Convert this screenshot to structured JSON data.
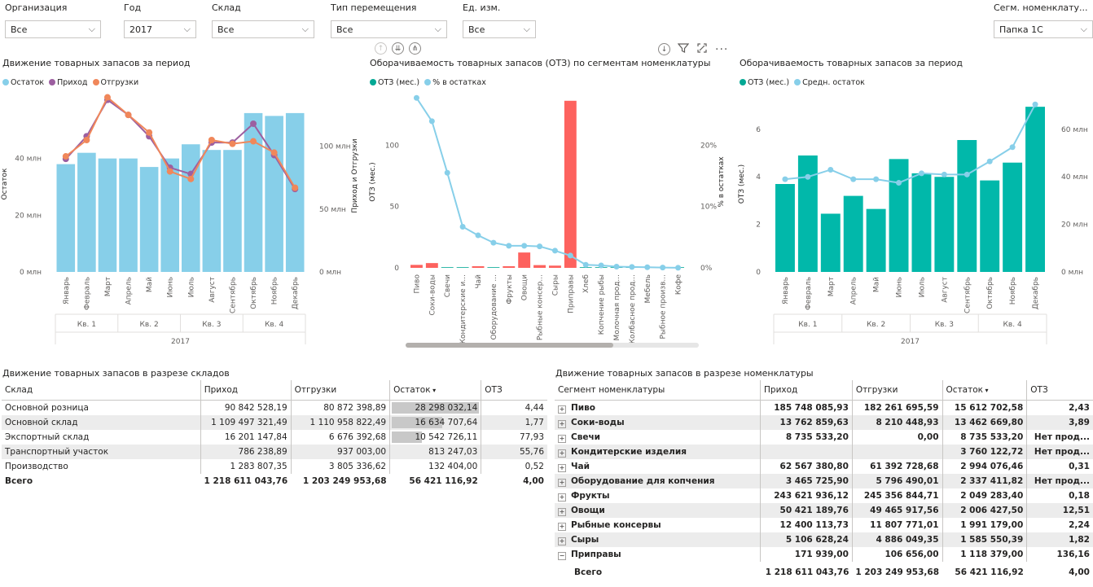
{
  "slicers": [
    {
      "label": "Организация",
      "value": "Все"
    },
    {
      "label": "Год",
      "value": "2017"
    },
    {
      "label": "Склад",
      "value": "Все"
    },
    {
      "label": "Тип перемещения",
      "value": "Все"
    },
    {
      "label": "Ед. изм.",
      "value": "Все"
    },
    {
      "label": "Сегм. номенклату...",
      "value": "Папка 1С"
    }
  ],
  "chart_data": [
    {
      "type": "bar",
      "title": "Движение товарных запасов за период",
      "legend": [
        {
          "name": "Остаток",
          "color": "#87cfe9"
        },
        {
          "name": "Приход",
          "color": "#9c5fa0"
        },
        {
          "name": "Отгрузки",
          "color": "#f0875a"
        }
      ],
      "categories": [
        "Январь",
        "Февраль",
        "Март",
        "Апрель",
        "Май",
        "Июнь",
        "Июль",
        "Август",
        "Сентябрь",
        "Октябрь",
        "Ноябрь",
        "Декабрь"
      ],
      "quarters": [
        "Кв. 1",
        "Кв. 2",
        "Кв. 3",
        "Кв. 4"
      ],
      "year": "2017",
      "ylabel": "Остаток",
      "y2label": "Приход и Отгрузки",
      "yticks": [
        "0 млн",
        "20 млн",
        "40 млн"
      ],
      "y2ticks": [
        "0 млн",
        "50 млн",
        "100 млн"
      ],
      "ylim": [
        0,
        62
      ],
      "y2lim": [
        0,
        140
      ],
      "series": [
        {
          "name": "Остаток",
          "values": [
            38,
            42,
            40,
            40,
            37,
            40,
            45,
            43,
            43,
            56,
            55,
            56
          ]
        },
        {
          "name": "Приход",
          "values": [
            90,
            108,
            137,
            125,
            108,
            83,
            78,
            103,
            103,
            118,
            93,
            66
          ]
        },
        {
          "name": "Отгрузки",
          "values": [
            92,
            105,
            139,
            125,
            111,
            80,
            74,
            105,
            102,
            104,
            95,
            67
          ]
        }
      ]
    },
    {
      "type": "bar",
      "title": "Оборачиваемость товарных запасов (ОТЗ) по сегментам номенклатуры",
      "legend": [
        {
          "name": "ОТЗ (мес.)",
          "color": "#03a894"
        },
        {
          "name": "% в остатках",
          "color": "#87cfe9"
        }
      ],
      "categories": [
        "Пиво",
        "Соки-воды",
        "Свечи",
        "Кондитерские и...",
        "Чай",
        "Оборудование ...",
        "Фрукты",
        "Овощи",
        "Рыбные консер...",
        "Сыры",
        "Приправы",
        "Хлеб",
        "Копчение рыбы",
        "Молочная прод...",
        "Колбасное прод...",
        "Мебель",
        "Рыбное произв...",
        "Кофе"
      ],
      "ylabel": "ОТЗ (мес.)",
      "y2label": "% в остатках",
      "yticks": [
        "0",
        "50",
        "100"
      ],
      "y2ticks": [
        "0%",
        "10%",
        "20%"
      ],
      "ylim": [
        0,
        140
      ],
      "y2lim": [
        0,
        28
      ],
      "series": [
        {
          "name": "ОТЗ (мес.)",
          "values": [
            2.43,
            3.89,
            0,
            0,
            0.31,
            0,
            0.18,
            12.51,
            2.24,
            1.82,
            136.16,
            0,
            0,
            0,
            0,
            0,
            0,
            0
          ]
        },
        {
          "name": "% в остатках",
          "values": [
            27.7,
            23.9,
            15.5,
            6.7,
            5.3,
            4.1,
            3.6,
            3.6,
            3.5,
            2.8,
            2.0,
            0.5,
            0.4,
            0.2,
            0.15,
            0.1,
            0.05,
            0.02
          ]
        }
      ]
    },
    {
      "type": "bar",
      "title": "Оборачиваемость товарных запасов за период",
      "legend": [
        {
          "name": "ОТЗ (мес.)",
          "color": "#03a894"
        },
        {
          "name": "Средн. остаток",
          "color": "#87cfe9"
        }
      ],
      "categories": [
        "Январь",
        "Февраль",
        "Март",
        "Апрель",
        "Май",
        "Июнь",
        "Июль",
        "Август",
        "Сентябрь",
        "Октябрь",
        "Ноябрь",
        "Декабрь"
      ],
      "quarters": [
        "Кв. 1",
        "Кв. 2",
        "Кв. 3",
        "Кв. 4"
      ],
      "year": "2017",
      "ylabel": "ОТЗ (мес.)",
      "yticks": [
        "0",
        "2",
        "4",
        "6"
      ],
      "y2ticks": [
        "0 млн",
        "20 млн",
        "40 млн",
        "60 млн"
      ],
      "ylim": [
        0,
        7.4
      ],
      "y2lim": [
        0,
        74
      ],
      "series": [
        {
          "name": "ОТЗ (мес.)",
          "values": [
            3.7,
            4.9,
            2.45,
            3.2,
            2.65,
            4.75,
            4.15,
            4.0,
            5.55,
            3.85,
            4.6,
            6.95
          ]
        },
        {
          "name": "Средн. остаток",
          "values": [
            39,
            40,
            43,
            39,
            39,
            37.5,
            41.5,
            41,
            41,
            46.5,
            52.5,
            70.5
          ]
        }
      ]
    }
  ],
  "warehouse_table": {
    "title": "Движение товарных запасов в разрезе складов",
    "headers": [
      "Склад",
      "Приход",
      "Отгрузки",
      "Остаток",
      "ОТЗ"
    ],
    "rows": [
      {
        "name": "Основной розница",
        "in": "90 842 528,19",
        "out": "80 872 398,89",
        "rest": "28 298 032,14",
        "rest_pct": 100,
        "otz": "4,44"
      },
      {
        "name": "Основной склад",
        "in": "1 109 497 321,49",
        "out": "1 110 958 822,49",
        "rest": "16 634 707,64",
        "rest_pct": 59,
        "otz": "1,77"
      },
      {
        "name": "Экспортный склад",
        "in": "16 201 147,84",
        "out": "6 676 392,68",
        "rest": "10 542 726,11",
        "rest_pct": 37,
        "otz": "77,93"
      },
      {
        "name": "Транспортный участок",
        "in": "786 238,89",
        "out": "937 003,00",
        "rest": "813 247,03",
        "rest_pct": 3,
        "otz": "55,76"
      },
      {
        "name": "Производство",
        "in": "1 283 807,35",
        "out": "3 805 336,62",
        "rest": "132 404,00",
        "rest_pct": 1,
        "otz": "0,52"
      }
    ],
    "total": {
      "name": "Всего",
      "in": "1 218 611 043,76",
      "out": "1 203 249 953,68",
      "rest": "56 421 116,92",
      "otz": "4,00"
    }
  },
  "nomenclature_table": {
    "title": "Движение товарных запасов в разрезе номенклатуры",
    "headers": [
      "Сегмент номенклатуры",
      "Приход",
      "Отгрузки",
      "Остаток",
      "ОТЗ"
    ],
    "rows": [
      {
        "exp": "+",
        "name": "Пиво",
        "in": "185 748 085,93",
        "out": "182 261 695,59",
        "rest": "15 612 702,58",
        "otz": "2,43"
      },
      {
        "exp": "+",
        "name": "Соки-воды",
        "in": "13 762 859,63",
        "out": "8 210 448,93",
        "rest": "13 462 669,80",
        "otz": "3,89"
      },
      {
        "exp": "+",
        "name": "Свечи",
        "in": "8 735 533,20",
        "out": "0,00",
        "rest": "8 735 533,20",
        "otz": "Нет прод..."
      },
      {
        "exp": "+",
        "name": "Кондитерские изделия",
        "in": "",
        "out": "",
        "rest": "3 760 122,72",
        "otz": "Нет прод..."
      },
      {
        "exp": "+",
        "name": "Чай",
        "in": "62 567 380,80",
        "out": "61 392 728,68",
        "rest": "2 994 076,46",
        "otz": "0,31"
      },
      {
        "exp": "+",
        "name": "Оборудование для копчения",
        "in": "3 465 725,90",
        "out": "5 796 490,01",
        "rest": "2 337 411,82",
        "otz": "Нет прод..."
      },
      {
        "exp": "+",
        "name": "Фрукты",
        "in": "243 621 936,12",
        "out": "245 356 844,71",
        "rest": "2 049 283,40",
        "otz": "0,18"
      },
      {
        "exp": "+",
        "name": "Овощи",
        "in": "50 421 189,76",
        "out": "49 465 917,56",
        "rest": "2 006 427,50",
        "otz": "12,51"
      },
      {
        "exp": "+",
        "name": "Рыбные консервы",
        "in": "12 400 113,73",
        "out": "11 807 771,01",
        "rest": "1 991 179,00",
        "otz": "2,24"
      },
      {
        "exp": "+",
        "name": "Сыры",
        "in": "5 106 628,24",
        "out": "4 886 049,35",
        "rest": "1 585 550,39",
        "otz": "1,82"
      },
      {
        "exp": "−",
        "name": "Приправы",
        "in": "171 939,00",
        "out": "106 656,00",
        "rest": "1 118 379,00",
        "otz": "136,16"
      }
    ],
    "total": {
      "name": "Всего",
      "in": "1 218 611 043,76",
      "out": "1 203 249 953,68",
      "rest": "56 421 116,92",
      "otz": "4,00"
    }
  }
}
